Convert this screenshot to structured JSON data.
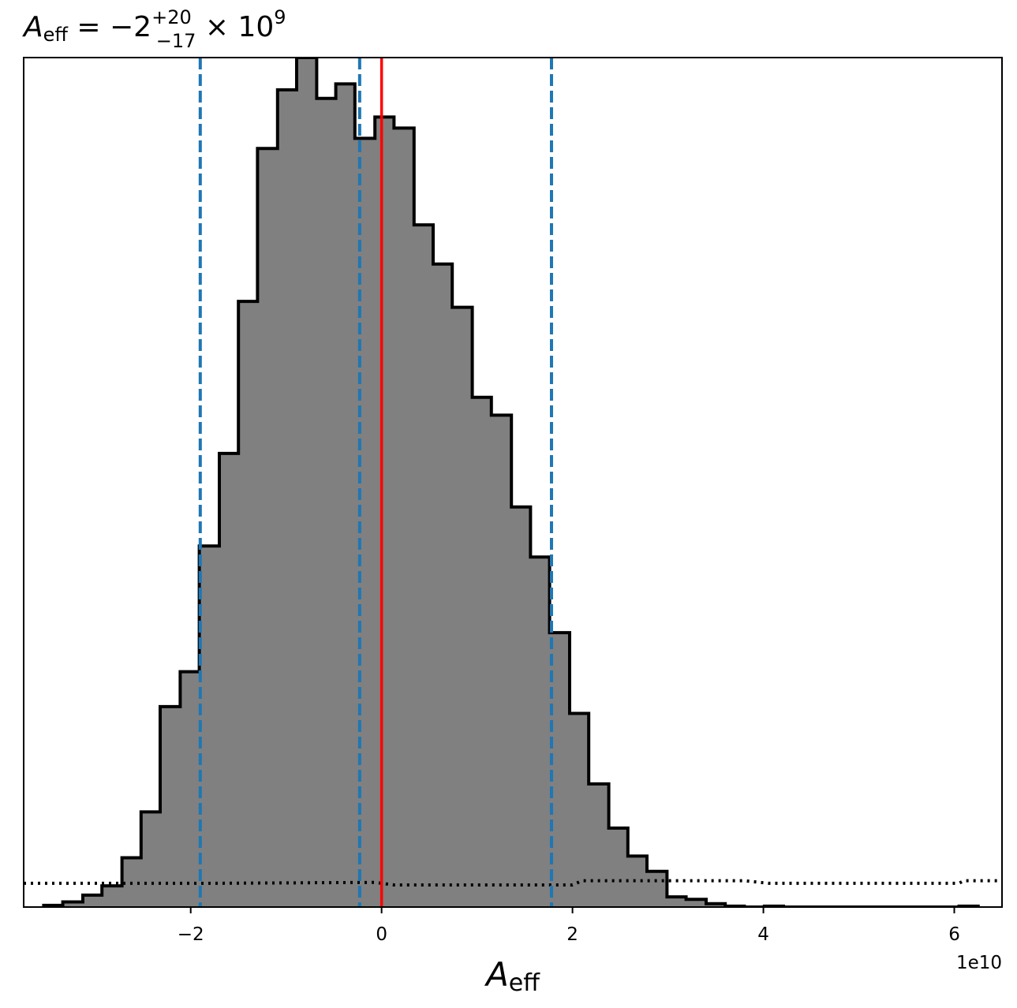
{
  "chart_data": {
    "type": "histogram",
    "title": {
      "symbol": "A",
      "symbol_sub": "eff",
      "text": " = −2",
      "sup": "+20",
      "sub": "−17",
      "suffix": " × 10",
      "suffix_sup": "9"
    },
    "xlabel": {
      "symbol": "A",
      "sub": "eff"
    },
    "ylabel": "",
    "x_offset_label": "1e10",
    "xlim": [
      -37500000000.0,
      65000000000.0
    ],
    "ylim": [
      0,
      1.0
    ],
    "x_ticks": [
      -20000000000.0,
      0,
      20000000000.0,
      40000000000.0,
      60000000000.0
    ],
    "x_tick_labels": [
      "−2",
      "0",
      "2",
      "4",
      "6"
    ],
    "y_ticks_visible": false,
    "grid": false,
    "histogram": {
      "fill_color": "#808080",
      "edge_color": "#000000",
      "bin_edges": [
        -35400000000.0,
        -33400000000.0,
        -31300000000.0,
        -29300000000.0,
        -27200000000.0,
        -25200000000.0,
        -23200000000.0,
        -21100000000.0,
        -19100000000.0,
        -17000000000.0,
        -15000000000.0,
        -13000000000.0,
        -10900000000.0,
        -8900000000.0,
        -6800000000.0,
        -4800000000.0,
        -2800000000.0,
        -700000000.0,
        1300000000.0,
        3400000000.0,
        5400000000.0,
        7400000000.0,
        9500000000.0,
        11500000000.0,
        13600000000.0,
        15600000000.0,
        17600000000.0,
        19700000000.0,
        21700000000.0,
        23800000000.0,
        25800000000.0,
        27800000000.0,
        29900000000.0,
        31900000000.0,
        34000000000.0,
        36000000000.0,
        38000000000.0,
        40100000000.0,
        42100000000.0,
        44200000000.0,
        46200000000.0,
        48200000000.0,
        50300000000.0,
        52300000000.0,
        54400000000.0,
        56400000000.0,
        58400000000.0,
        60500000000.0,
        62500000000.0
      ],
      "counts": [
        0.002,
        0.006,
        0.014,
        0.025,
        0.058,
        0.112,
        0.236,
        0.277,
        0.425,
        0.534,
        0.713,
        0.893,
        0.962,
        1.0,
        0.952,
        0.969,
        0.905,
        0.93,
        0.917,
        0.803,
        0.757,
        0.706,
        0.6,
        0.579,
        0.471,
        0.412,
        0.323,
        0.228,
        0.145,
        0.093,
        0.06,
        0.042,
        0.012,
        0.009,
        0.004,
        0.001,
        0.0,
        0.001,
        0.0,
        0.0,
        0.0,
        0.0,
        0.0,
        0.0,
        0.0,
        0.0,
        0.0,
        0.001
      ]
    },
    "prior": {
      "style": "dotted",
      "color": "#000000",
      "points": [
        [
          -37500000000.0,
          0.028
        ],
        [
          -17000000000.0,
          0.028
        ],
        [
          -700000000.0,
          0.029
        ],
        [
          1300000000.0,
          0.026
        ],
        [
          20000000000.0,
          0.026
        ],
        [
          21000000000.0,
          0.031
        ],
        [
          38000000000.0,
          0.031
        ],
        [
          40500000000.0,
          0.028
        ],
        [
          60500000000.0,
          0.028
        ],
        [
          61000000000.0,
          0.031
        ],
        [
          65000000000.0,
          0.031
        ]
      ]
    },
    "vertical_lines": [
      {
        "x": -19000000000.0,
        "color": "#1f77b4",
        "style": "dashed",
        "kind": "lower-bound"
      },
      {
        "x": -2300000000.0,
        "color": "#1f77b4",
        "style": "dashed",
        "kind": "median"
      },
      {
        "x": 17800000000.0,
        "color": "#1f77b4",
        "style": "dashed",
        "kind": "upper-bound"
      },
      {
        "x": 0,
        "color": "#ff0000",
        "style": "solid",
        "kind": "truth"
      }
    ]
  }
}
